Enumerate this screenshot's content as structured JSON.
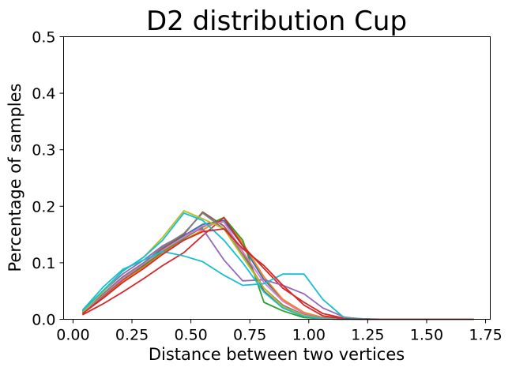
{
  "chart_data": {
    "type": "line",
    "title": "D2 distribution Cup",
    "xlabel": "Distance between two vertices",
    "ylabel": "Percentage of samples",
    "xlim": [
      -0.04,
      1.77
    ],
    "ylim": [
      0,
      0.5
    ],
    "xticks": [
      0.0,
      0.25,
      0.5,
      0.75,
      1.0,
      1.25,
      1.5,
      1.75
    ],
    "xtick_labels": [
      "0.00",
      "0.25",
      "0.50",
      "0.75",
      "1.00",
      "1.25",
      "1.50",
      "1.75"
    ],
    "yticks": [
      0.0,
      0.1,
      0.2,
      0.3,
      0.4,
      0.5
    ],
    "ytick_labels": [
      "0.0",
      "0.1",
      "0.2",
      "0.3",
      "0.4",
      "0.5"
    ],
    "grid": false,
    "legend": "none",
    "x": [
      0.04,
      0.13,
      0.21,
      0.3,
      0.38,
      0.47,
      0.55,
      0.64,
      0.72,
      0.81,
      0.89,
      0.98,
      1.06,
      1.15,
      1.23,
      1.32,
      1.4,
      1.49,
      1.57,
      1.66,
      1.7
    ],
    "series": [
      {
        "color": "#1f77b4",
        "values": [
          0.012,
          0.045,
          0.075,
          0.1,
          0.125,
          0.148,
          0.168,
          0.175,
          0.13,
          0.07,
          0.035,
          0.012,
          0.003,
          0.001,
          0,
          0,
          0,
          0,
          0,
          0,
          0
        ]
      },
      {
        "color": "#ff7f0e",
        "values": [
          0.01,
          0.04,
          0.068,
          0.093,
          0.118,
          0.14,
          0.158,
          0.18,
          0.135,
          0.075,
          0.035,
          0.012,
          0.003,
          0,
          0,
          0,
          0,
          0,
          0,
          0,
          0
        ]
      },
      {
        "color": "#2ca02c",
        "values": [
          0.012,
          0.043,
          0.07,
          0.095,
          0.12,
          0.143,
          0.163,
          0.18,
          0.14,
          0.03,
          0.015,
          0.003,
          0.001,
          0,
          0,
          0,
          0,
          0,
          0,
          0,
          0
        ]
      },
      {
        "color": "#d62728",
        "values": [
          0.008,
          0.028,
          0.048,
          0.072,
          0.095,
          0.118,
          0.148,
          0.18,
          0.13,
          0.09,
          0.055,
          0.03,
          0.01,
          0.002,
          0,
          0,
          0,
          0,
          0,
          0,
          0
        ]
      },
      {
        "color": "#9467bd",
        "values": [
          0.014,
          0.05,
          0.08,
          0.105,
          0.13,
          0.15,
          0.16,
          0.105,
          0.068,
          0.07,
          0.06,
          0.045,
          0.02,
          0.004,
          0,
          0,
          0,
          0,
          0,
          0,
          0
        ]
      },
      {
        "color": "#8c564b",
        "values": [
          0.011,
          0.042,
          0.07,
          0.097,
          0.125,
          0.15,
          0.19,
          0.165,
          0.12,
          0.05,
          0.02,
          0.005,
          0.001,
          0,
          0,
          0,
          0,
          0,
          0,
          0,
          0
        ]
      },
      {
        "color": "#e377c2",
        "values": [
          0.012,
          0.044,
          0.072,
          0.098,
          0.122,
          0.145,
          0.165,
          0.172,
          0.12,
          0.065,
          0.032,
          0.01,
          0.002,
          0,
          0,
          0,
          0,
          0,
          0,
          0,
          0
        ]
      },
      {
        "color": "#7f7f7f",
        "values": [
          0.013,
          0.046,
          0.075,
          0.1,
          0.128,
          0.152,
          0.188,
          0.16,
          0.115,
          0.055,
          0.025,
          0.008,
          0.002,
          0,
          0,
          0,
          0,
          0,
          0,
          0,
          0
        ]
      },
      {
        "color": "#bcbd22",
        "values": [
          0.012,
          0.05,
          0.085,
          0.11,
          0.145,
          0.192,
          0.178,
          0.16,
          0.11,
          0.055,
          0.022,
          0.007,
          0.001,
          0,
          0,
          0,
          0,
          0,
          0,
          0,
          0
        ]
      },
      {
        "color": "#17becf",
        "values": [
          0.016,
          0.058,
          0.088,
          0.105,
          0.12,
          0.112,
          0.102,
          0.078,
          0.06,
          0.063,
          0.08,
          0.08,
          0.035,
          0.003,
          0.001,
          0,
          0,
          0,
          0,
          0,
          0
        ]
      },
      {
        "color": "#17becf",
        "values": [
          0.015,
          0.052,
          0.085,
          0.11,
          0.14,
          0.188,
          0.175,
          0.14,
          0.1,
          0.048,
          0.02,
          0.005,
          0.001,
          0,
          0,
          0,
          0,
          0,
          0,
          0,
          0
        ]
      },
      {
        "color": "#d62728",
        "values": [
          0.01,
          0.038,
          0.065,
          0.09,
          0.115,
          0.14,
          0.155,
          0.16,
          0.125,
          0.095,
          0.06,
          0.025,
          0.006,
          0.001,
          0,
          0,
          0,
          0,
          0,
          0,
          0
        ]
      }
    ]
  }
}
